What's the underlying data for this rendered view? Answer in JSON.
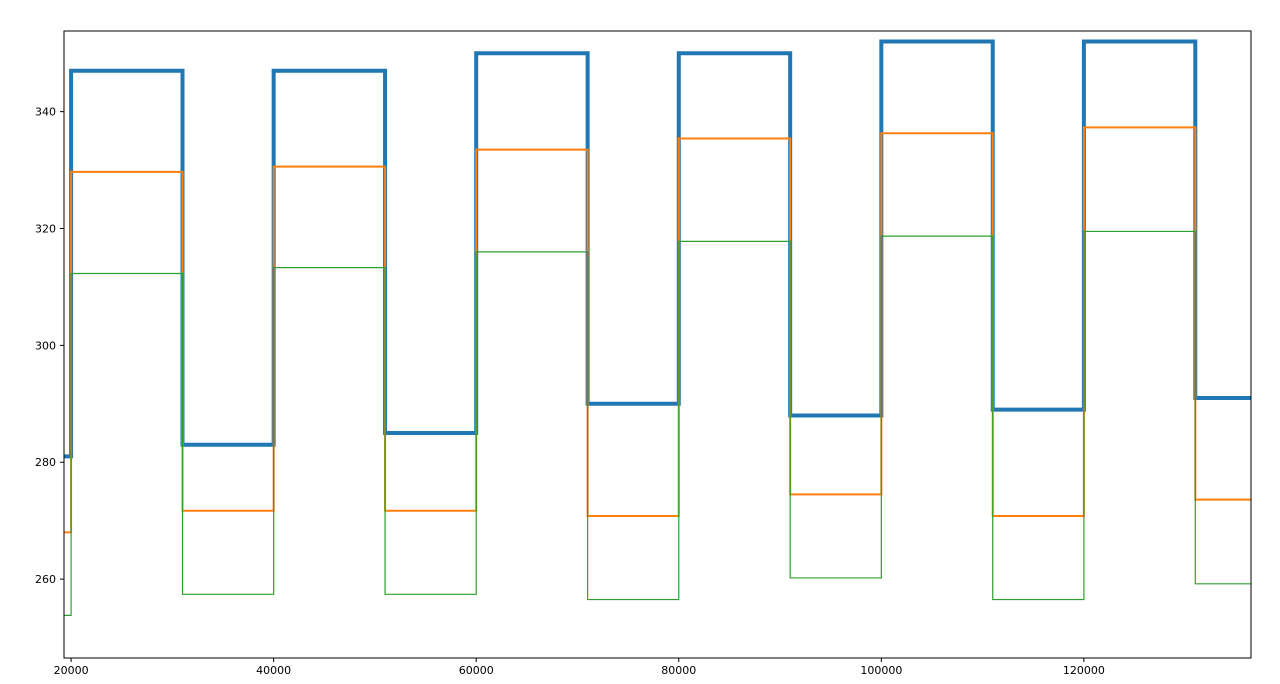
{
  "chart_data": {
    "type": "line",
    "step": "post",
    "title": "",
    "xlabel": "",
    "ylabel": "",
    "xlim": [
      19300,
      136500
    ],
    "ylim": [
      246.5,
      353.8
    ],
    "grid": false,
    "legend": "none",
    "x_ticks": [
      20000,
      40000,
      60000,
      80000,
      100000,
      120000
    ],
    "y_ticks": [
      260,
      280,
      300,
      320,
      340
    ],
    "x_tick_labels": [
      "20000",
      "40000",
      "60000",
      "80000",
      "100000",
      "120000"
    ],
    "y_tick_labels": [
      "260",
      "280",
      "300",
      "320",
      "340"
    ],
    "series": [
      {
        "color": "#1f77b4",
        "x": [
          19300,
          20000,
          31000,
          40000,
          51000,
          60000,
          71000,
          80000,
          91000,
          100000,
          111000,
          120000,
          131000,
          136500
        ],
        "values": [
          281,
          347,
          283,
          347,
          285,
          350,
          290,
          350,
          288,
          352,
          289,
          352,
          291,
          291
        ]
      },
      {
        "color": "#ff7f0e",
        "x": [
          19300,
          20000,
          31000,
          40000,
          51000,
          60000,
          71000,
          80000,
          91000,
          100000,
          111000,
          120000,
          131000,
          136500
        ],
        "values": [
          268,
          329.7,
          271.7,
          330.6,
          271.7,
          333.5,
          270.8,
          335.4,
          274.5,
          336.3,
          270.8,
          337.3,
          273.6,
          273.6
        ]
      },
      {
        "color": "#2ca02c",
        "x": [
          19300,
          20000,
          31000,
          40000,
          51000,
          60000,
          71000,
          80000,
          91000,
          100000,
          111000,
          120000,
          131000,
          136500
        ],
        "values": [
          253.8,
          312.3,
          257.4,
          313.3,
          257.4,
          316,
          256.5,
          317.8,
          260.2,
          318.7,
          256.5,
          319.5,
          259.2,
          259.2
        ]
      }
    ]
  }
}
